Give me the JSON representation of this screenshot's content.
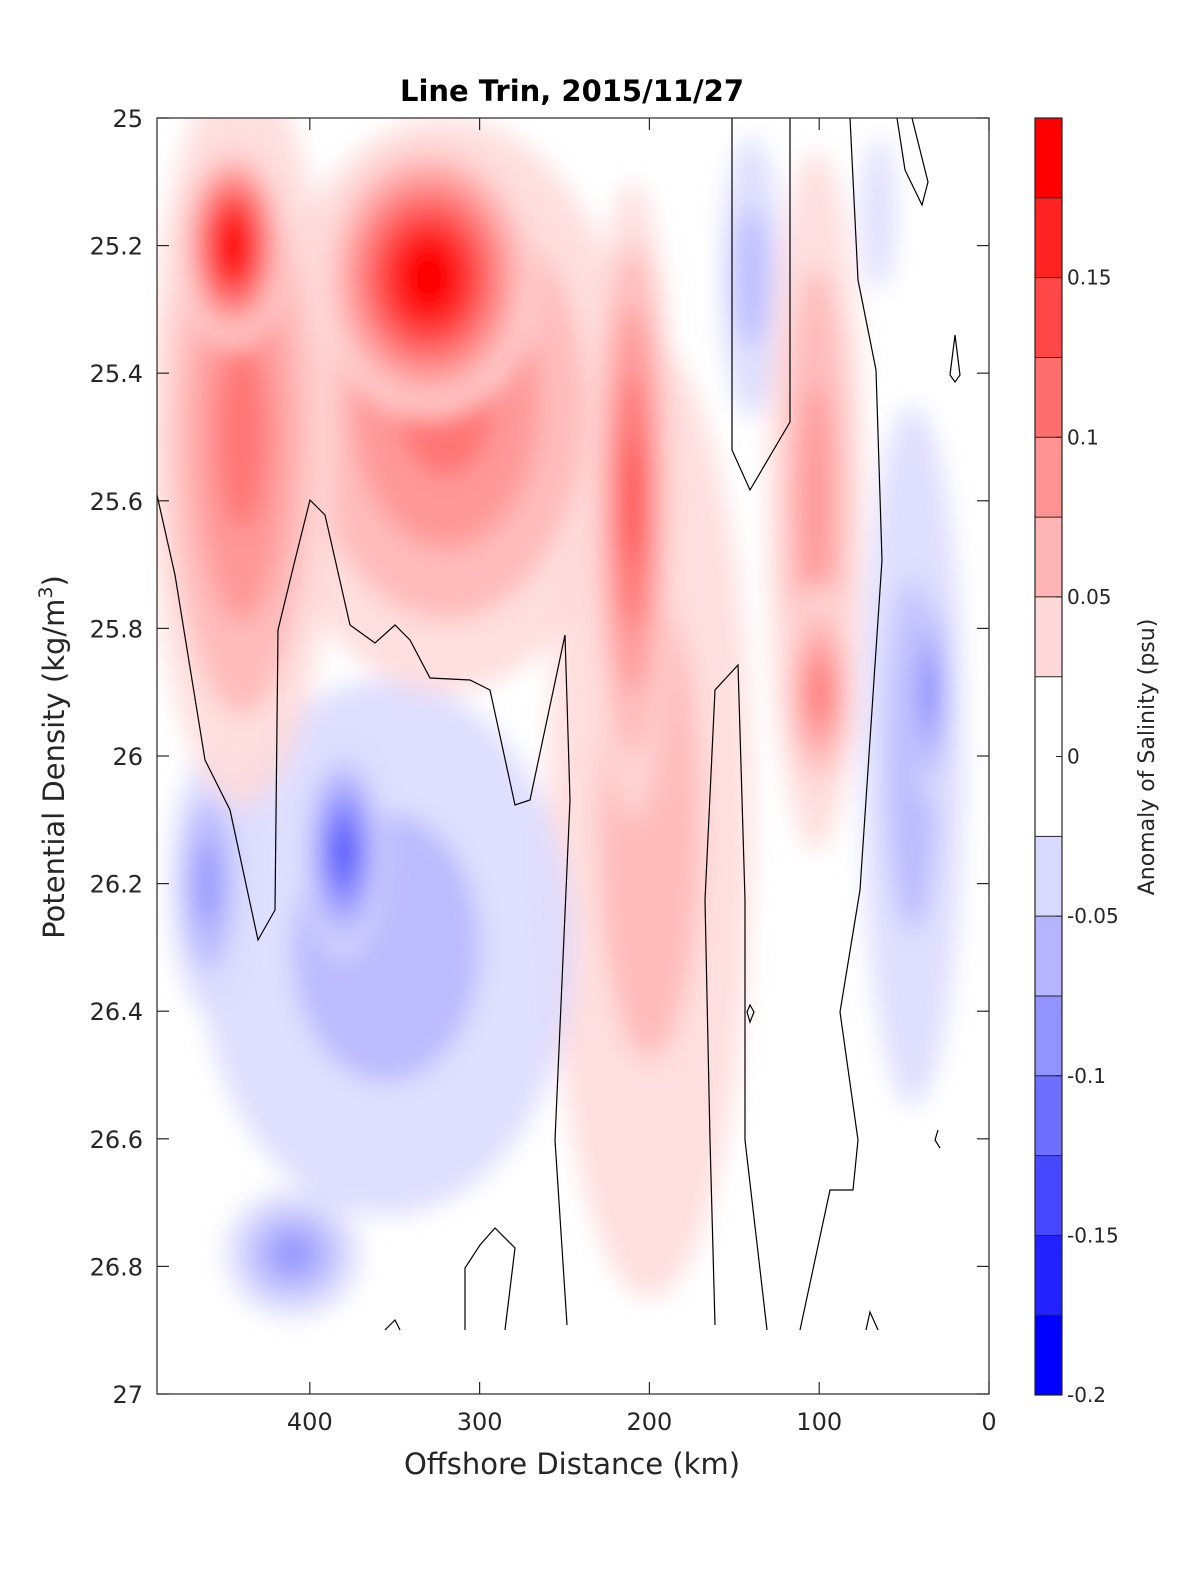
{
  "chart_data": {
    "type": "heatmap",
    "subtype": "filled-contour",
    "title": "Line Trin, 2015/11/27",
    "xlabel": "Offshore Distance (km)",
    "ylabel": "Potential Density (kg/m",
    "ylabel_sup": "3",
    "ylabel_close": ")",
    "xlim": [
      490,
      0
    ],
    "ylim": [
      25,
      27
    ],
    "x_reversed": true,
    "y_reversed": true,
    "xticks": [
      400,
      300,
      200,
      100,
      0
    ],
    "yticks": [
      25,
      25.2,
      25.4,
      25.6,
      25.8,
      26,
      26.2,
      26.4,
      26.6,
      26.8,
      27
    ],
    "xtick_labels": [
      "400",
      "300",
      "200",
      "100",
      "0"
    ],
    "ytick_labels": [
      "25",
      "25.2",
      "25.4",
      "25.6",
      "25.8",
      "26",
      "26.2",
      "26.4",
      "26.6",
      "26.8",
      "27"
    ],
    "zero_contour_line": true,
    "colorbar": {
      "label": "Anomaly of Salinity (psu)",
      "levels": [
        -0.2,
        -0.175,
        -0.15,
        -0.125,
        -0.1,
        -0.075,
        -0.05,
        -0.025,
        0.025,
        0.05,
        0.075,
        0.1,
        0.125,
        0.15,
        0.175,
        0.2
      ],
      "ticks": [
        -0.2,
        -0.15,
        -0.1,
        -0.05,
        0,
        0.05,
        0.1,
        0.15
      ],
      "tick_labels": [
        "-0.2",
        "-0.15",
        "-0.1",
        "-0.05",
        "0",
        "0.05",
        "0.1",
        "0.15"
      ],
      "colors": [
        "#0000ff",
        "#2222ff",
        "#4848ff",
        "#6e6eff",
        "#9393ff",
        "#b5b5ff",
        "#d9d9ff",
        "#ffffff",
        "#ffd9d9",
        "#ffb5b5",
        "#ff9393",
        "#ff6e6e",
        "#ff4848",
        "#ff2222",
        "#ff0000"
      ]
    },
    "features": [
      {
        "name": "salty-core-450km",
        "x": 445,
        "y": 25.2,
        "rx": 32,
        "ry": 0.16,
        "value": 0.19
      },
      {
        "name": "salty-envelope-450km",
        "x": 440,
        "y": 25.5,
        "rx": 55,
        "ry": 0.58,
        "value": 0.1
      },
      {
        "name": "salty-core-330km",
        "x": 330,
        "y": 25.25,
        "rx": 65,
        "ry": 0.22,
        "value": 0.19
      },
      {
        "name": "salty-envelope-320km",
        "x": 320,
        "y": 25.45,
        "rx": 110,
        "ry": 0.45,
        "value": 0.09
      },
      {
        "name": "salty-tongue-210km",
        "x": 210,
        "y": 25.6,
        "rx": 25,
        "ry": 0.5,
        "value": 0.13
      },
      {
        "name": "salty-envelope-200km",
        "x": 200,
        "y": 26.1,
        "rx": 60,
        "ry": 0.75,
        "value": 0.05
      },
      {
        "name": "salty-lens-100km",
        "x": 100,
        "y": 25.9,
        "rx": 22,
        "ry": 0.17,
        "value": 0.11
      },
      {
        "name": "salty-column-100km",
        "x": 102,
        "y": 25.6,
        "rx": 28,
        "ry": 0.55,
        "value": 0.07
      },
      {
        "name": "fresh-core-380km",
        "x": 380,
        "y": 26.15,
        "rx": 25,
        "ry": 0.17,
        "value": -0.13
      },
      {
        "name": "fresh-envelope-360km",
        "x": 355,
        "y": 26.3,
        "rx": 110,
        "ry": 0.42,
        "value": -0.06
      },
      {
        "name": "fresh-lens-460km",
        "x": 460,
        "y": 26.2,
        "rx": 22,
        "ry": 0.2,
        "value": -0.07
      },
      {
        "name": "fresh-core-35km",
        "x": 35,
        "y": 25.9,
        "rx": 12,
        "ry": 0.18,
        "value": -0.1
      },
      {
        "name": "fresh-column-40km",
        "x": 45,
        "y": 26.0,
        "rx": 30,
        "ry": 0.55,
        "value": -0.05
      },
      {
        "name": "fresh-patch-140km",
        "x": 140,
        "y": 25.25,
        "rx": 18,
        "ry": 0.22,
        "value": -0.04
      },
      {
        "name": "fresh-patch-60km",
        "x": 65,
        "y": 25.15,
        "rx": 10,
        "ry": 0.12,
        "value": -0.03
      },
      {
        "name": "fresh-deep-410km",
        "x": 410,
        "y": 26.78,
        "rx": 40,
        "ry": 0.1,
        "value": -0.07
      }
    ]
  }
}
